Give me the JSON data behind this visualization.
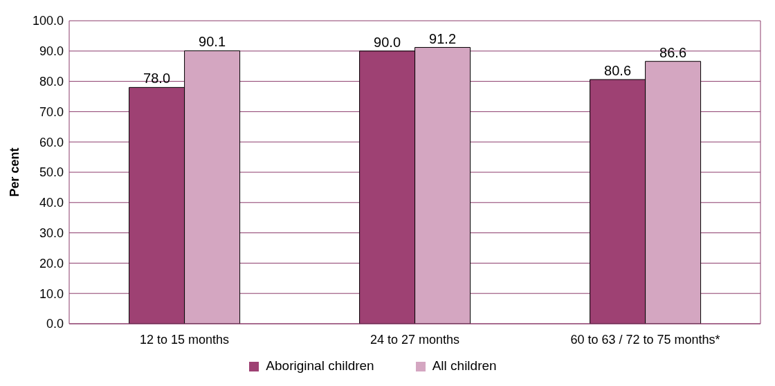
{
  "chart_data": {
    "type": "bar",
    "ylabel": "Per cent",
    "categories": [
      "12 to 15 months",
      "24 to 27 months",
      "60 to 63 / 72 to 75 months*"
    ],
    "series": [
      {
        "name": "Aboriginal children",
        "color": "#9e4173",
        "values": [
          78.0,
          90.0,
          80.6
        ],
        "value_labels": [
          "78.0",
          "90.0",
          "80.6"
        ]
      },
      {
        "name": "All children",
        "color": "#d4a6c1",
        "values": [
          90.1,
          91.2,
          86.6
        ],
        "value_labels": [
          "90.1",
          "91.2",
          "86.6"
        ]
      }
    ],
    "ylim": [
      0,
      100
    ],
    "yticks": [
      {
        "value": 0,
        "label": "0.0"
      },
      {
        "value": 10,
        "label": "10.0"
      },
      {
        "value": 20,
        "label": "20.0"
      },
      {
        "value": 30,
        "label": "30.0"
      },
      {
        "value": 40,
        "label": "40.0"
      },
      {
        "value": 50,
        "label": "50.0"
      },
      {
        "value": 60,
        "label": "60.0"
      },
      {
        "value": 70,
        "label": "70.0"
      },
      {
        "value": 80,
        "label": "80.0"
      },
      {
        "value": 90,
        "label": "90.0"
      },
      {
        "value": 100,
        "label": "100.0"
      }
    ],
    "grid": "y",
    "legend": "bottom"
  }
}
